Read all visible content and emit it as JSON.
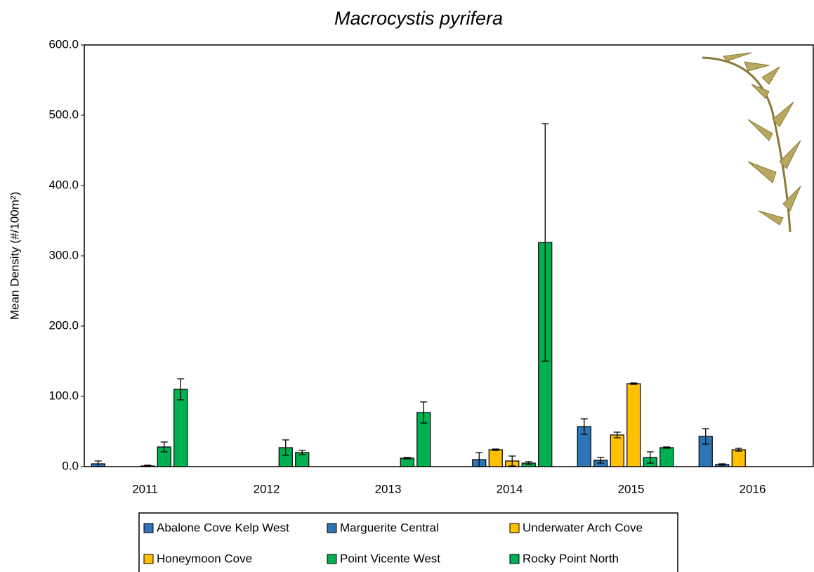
{
  "chart_data": {
    "type": "bar",
    "title": "Macrocystis pyrifera",
    "y_label": "Mean Density (#/100m²)",
    "categories": [
      "2011",
      "2012",
      "2013",
      "2014",
      "2015",
      "2016"
    ],
    "series": [
      {
        "name": "Abalone Cove Kelp West",
        "color": "#2e75b6",
        "values": [
          4,
          0,
          0,
          0,
          57,
          43
        ],
        "errors": [
          4,
          0,
          0,
          0,
          11,
          11
        ]
      },
      {
        "name": "Marguerite Central",
        "color": "#2e75b6",
        "values": [
          0,
          0,
          0,
          10,
          9,
          3
        ],
        "errors": [
          0,
          0,
          0,
          10,
          4,
          1
        ]
      },
      {
        "name": "Underwater Arch Cove",
        "color": "#ffc000",
        "values": [
          0,
          0,
          0,
          24,
          45,
          24
        ],
        "errors": [
          0,
          0,
          0,
          1,
          4,
          2
        ]
      },
      {
        "name": "Honeymoon Cove",
        "color": "#ffc000",
        "values": [
          1,
          0,
          0,
          8,
          118,
          0
        ],
        "errors": [
          1,
          0,
          0,
          7,
          1,
          0
        ]
      },
      {
        "name": "Point Vicente West",
        "color": "#00b050",
        "values": [
          28,
          27,
          12,
          5,
          13,
          0
        ],
        "errors": [
          7,
          11,
          1,
          2,
          8,
          0
        ]
      },
      {
        "name": "Rocky Point North",
        "color": "#00b050",
        "values": [
          110,
          20,
          77,
          319,
          27,
          0
        ],
        "errors": [
          15,
          3,
          15,
          169,
          1,
          0
        ]
      }
    ],
    "ylim": [
      0,
      600
    ],
    "yticks": [
      {
        "value": 0,
        "label": "0.0"
      },
      {
        "value": 100,
        "label": "100.0"
      },
      {
        "value": 200,
        "label": "200.0"
      },
      {
        "value": 300,
        "label": "300.0"
      },
      {
        "value": 400,
        "label": "400.0"
      },
      {
        "value": 500,
        "label": "500.0"
      },
      {
        "value": 600,
        "label": "600.0"
      }
    ],
    "grid": false
  }
}
